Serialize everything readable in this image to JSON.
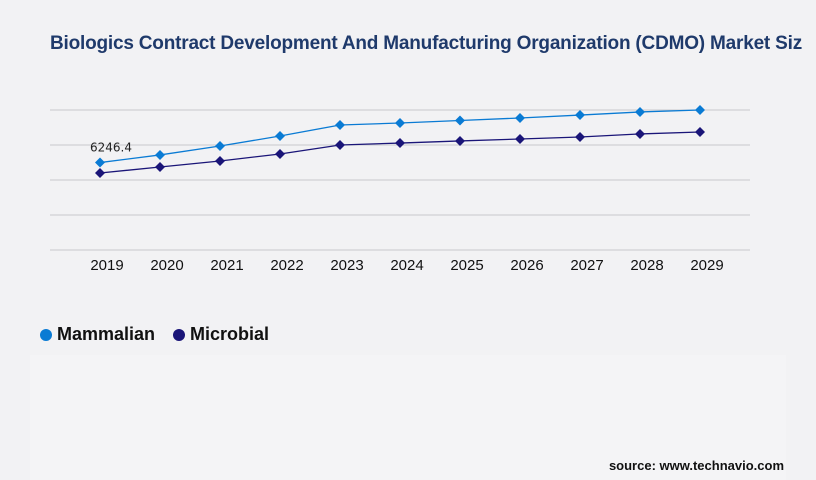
{
  "title": "Biologics Contract Development And Manufacturing Organization (CDMO) Market Siz",
  "source": "source: www.technavio.com",
  "chart_data": {
    "type": "line",
    "title": "Biologics Contract Development And Manufacturing Organization (CDMO) Market Siz",
    "x": [
      "2019",
      "2020",
      "2021",
      "2022",
      "2023",
      "2024",
      "2025",
      "2026",
      "2027",
      "2028",
      "2029"
    ],
    "series": [
      {
        "name": "Mammalian",
        "color": "#0a7bd4",
        "values": [
          6246.4,
          6790,
          7430,
          8140,
          8930,
          9070,
          9250,
          9430,
          9640,
          9860,
          10000
        ]
      },
      {
        "name": "Microbial",
        "color": "#1a1578",
        "values": [
          5500,
          5930,
          6360,
          6860,
          7500,
          7640,
          7790,
          7930,
          8070,
          8290,
          8430
        ]
      }
    ],
    "annotations": [
      {
        "series": "Mammalian",
        "x": "2019",
        "label": "6246.4"
      }
    ],
    "ylim": [
      0,
      10000
    ],
    "yticks_shown": false,
    "grid": true,
    "legend": "bottom-left",
    "xlabel": "",
    "ylabel": ""
  }
}
